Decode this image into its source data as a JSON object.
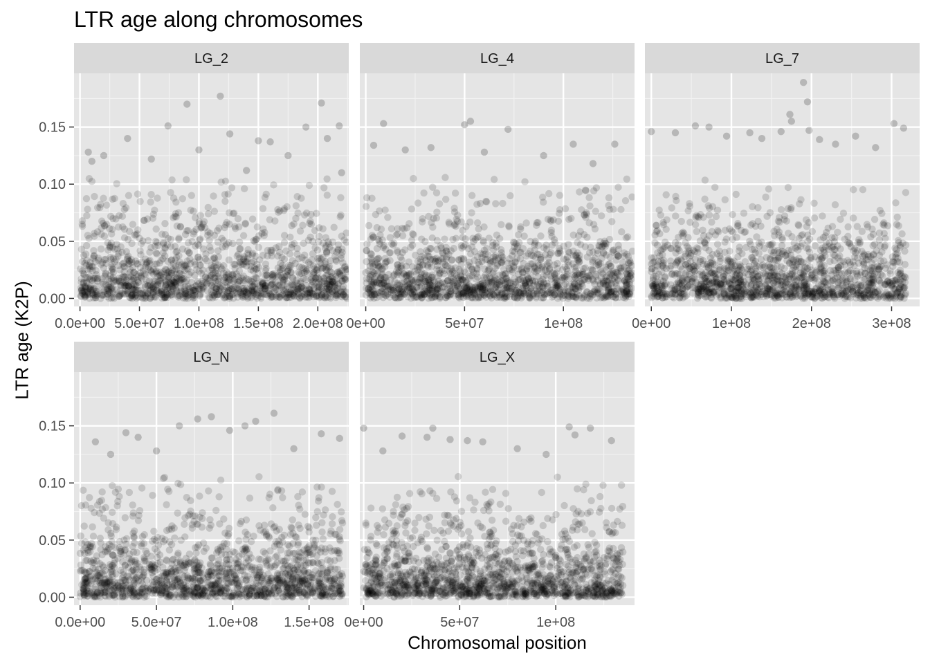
{
  "chart_data": {
    "type": "scatter",
    "title": "LTR age along chromosomes",
    "xlabel": "Chromosomal position",
    "ylabel": "LTR age (K2P)",
    "grid": true,
    "legend": "none",
    "point_color": "#000000",
    "point_alpha": 0.15,
    "panel_background": "#e5e5e5",
    "strip_background": "#d9d9d9",
    "y_ticks": [
      0.0,
      0.05,
      0.1,
      0.15
    ],
    "y_tick_labels": [
      "0.00",
      "0.05",
      "0.10",
      "0.15"
    ],
    "ylim": [
      -0.007,
      0.197
    ],
    "panels": [
      {
        "name": "LG_2",
        "xlim": [
          -5000000,
          226000000
        ],
        "x_ticks": [
          0,
          50000000,
          100000000,
          150000000,
          200000000
        ],
        "x_tick_labels": [
          "0.0e+00",
          "5.0e+07",
          "1.0e+08",
          "1.5e+08",
          "2.0e+08"
        ],
        "x_max": 225000000,
        "points": [
          [
            7000000,
            0.128
          ],
          [
            74000000,
            0.151
          ],
          [
            90000000,
            0.17
          ],
          [
            118000000,
            0.177
          ],
          [
            126000000,
            0.144
          ],
          [
            150000000,
            0.138
          ],
          [
            190000000,
            0.15
          ],
          [
            203000000,
            0.171
          ],
          [
            208000000,
            0.14
          ],
          [
            218000000,
            0.151
          ],
          [
            40000000,
            0.14
          ],
          [
            160000000,
            0.137
          ],
          [
            20000000,
            0.125
          ],
          [
            100000000,
            0.13
          ],
          [
            60000000,
            0.122
          ],
          [
            175000000,
            0.125
          ],
          [
            220000000,
            0.11
          ],
          [
            10000000,
            0.12
          ],
          [
            140000000,
            0.112
          ]
        ]
      },
      {
        "name": "LG_4",
        "xlim": [
          -3000000,
          136000000
        ],
        "x_ticks": [
          0,
          50000000,
          100000000
        ],
        "x_tick_labels": [
          "0e+00",
          "5e+07",
          "1e+08"
        ],
        "x_max": 135000000,
        "points": [
          [
            9000000,
            0.153
          ],
          [
            50000000,
            0.152
          ],
          [
            53000000,
            0.155
          ],
          [
            72000000,
            0.148
          ],
          [
            4000000,
            0.134
          ],
          [
            20000000,
            0.13
          ],
          [
            33000000,
            0.132
          ],
          [
            105000000,
            0.135
          ],
          [
            126000000,
            0.135
          ],
          [
            60000000,
            0.128
          ],
          [
            90000000,
            0.125
          ],
          [
            115000000,
            0.118
          ]
        ]
      },
      {
        "name": "LG_7",
        "xlim": [
          -8000000,
          335000000
        ],
        "x_ticks": [
          0,
          100000000,
          200000000,
          300000000
        ],
        "x_tick_labels": [
          "0e+00",
          "1e+08",
          "2e+08",
          "3e+08"
        ],
        "x_max": 318000000,
        "points": [
          [
            0,
            0.146
          ],
          [
            55000000,
            0.151
          ],
          [
            72000000,
            0.15
          ],
          [
            94000000,
            0.142
          ],
          [
            162000000,
            0.146
          ],
          [
            173000000,
            0.161
          ],
          [
            175000000,
            0.155
          ],
          [
            190000000,
            0.189
          ],
          [
            195000000,
            0.172
          ],
          [
            197000000,
            0.147
          ],
          [
            210000000,
            0.139
          ],
          [
            255000000,
            0.142
          ],
          [
            303000000,
            0.153
          ],
          [
            315000000,
            0.149
          ],
          [
            30000000,
            0.145
          ],
          [
            123000000,
            0.145
          ],
          [
            138000000,
            0.14
          ],
          [
            230000000,
            0.135
          ],
          [
            280000000,
            0.132
          ]
        ]
      },
      {
        "name": "LG_N",
        "xlim": [
          -4000000,
          176000000
        ],
        "x_ticks": [
          0,
          50000000,
          100000000,
          150000000
        ],
        "x_tick_labels": [
          "0.0e+00",
          "5.0e+07",
          "1.0e+08",
          "1.5e+08"
        ],
        "x_max": 172000000,
        "points": [
          [
            10000000,
            0.136
          ],
          [
            30000000,
            0.144
          ],
          [
            38000000,
            0.14
          ],
          [
            65000000,
            0.15
          ],
          [
            77000000,
            0.156
          ],
          [
            86000000,
            0.158
          ],
          [
            98000000,
            0.146
          ],
          [
            108000000,
            0.15
          ],
          [
            115000000,
            0.154
          ],
          [
            127000000,
            0.161
          ],
          [
            158000000,
            0.143
          ],
          [
            170000000,
            0.139
          ],
          [
            20000000,
            0.125
          ],
          [
            50000000,
            0.128
          ],
          [
            140000000,
            0.13
          ]
        ]
      },
      {
        "name": "LG_X",
        "xlim": [
          -2000000,
          141000000
        ],
        "x_ticks": [
          0,
          50000000,
          100000000
        ],
        "x_tick_labels": [
          "0e+00",
          "5e+07",
          "1e+08"
        ],
        "x_max": 135000000,
        "points": [
          [
            0,
            0.148
          ],
          [
            20000000,
            0.141
          ],
          [
            33000000,
            0.14
          ],
          [
            36000000,
            0.148
          ],
          [
            45000000,
            0.138
          ],
          [
            54000000,
            0.137
          ],
          [
            62000000,
            0.136
          ],
          [
            80000000,
            0.13
          ],
          [
            107000000,
            0.149
          ],
          [
            110000000,
            0.142
          ],
          [
            118000000,
            0.148
          ],
          [
            129000000,
            0.137
          ],
          [
            10000000,
            0.128
          ],
          [
            95000000,
            0.125
          ]
        ]
      }
    ]
  }
}
